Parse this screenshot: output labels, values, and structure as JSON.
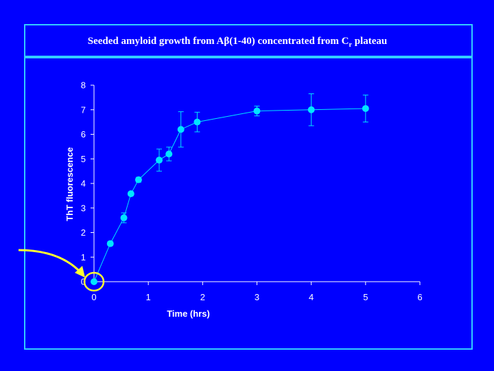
{
  "slide": {
    "title_main": "Seeded amyloid growth from Aβ(1-40) concentrated from C",
    "title_sub": "r",
    "title_tail": " plateau"
  },
  "colors": {
    "background": "#0000FF",
    "frame": "#33CCFF",
    "data": "#00E5FF",
    "axis": "#FFFFFF",
    "arrow": "#FFFF33"
  },
  "chart_data": {
    "type": "line",
    "title": "",
    "xlabel": "Time (hrs)",
    "ylabel": "ThT fluorescence",
    "xlim": [
      0,
      6
    ],
    "ylim": [
      0,
      8
    ],
    "xticks": [
      "0",
      "1",
      "2",
      "3",
      "4",
      "5",
      "6"
    ],
    "yticks": [
      "0",
      "1",
      "2",
      "3",
      "4",
      "5",
      "6",
      "7",
      "8"
    ],
    "grid": false,
    "series": [
      {
        "points": [
          {
            "x": 0,
            "y": 0,
            "err": 0
          },
          {
            "x": 0.3,
            "y": 1.55,
            "err": 0.08
          },
          {
            "x": 0.55,
            "y": 2.6,
            "err": 0.2
          },
          {
            "x": 0.68,
            "y": 3.58,
            "err": 0.08
          },
          {
            "x": 0.82,
            "y": 4.15,
            "err": 0.1
          },
          {
            "x": 1.2,
            "y": 4.95,
            "err": 0.45
          },
          {
            "x": 1.38,
            "y": 5.2,
            "err": 0.28
          },
          {
            "x": 1.6,
            "y": 6.2,
            "err": 0.72
          },
          {
            "x": 1.9,
            "y": 6.5,
            "err": 0.4
          },
          {
            "x": 3.0,
            "y": 6.95,
            "err": 0.2
          },
          {
            "x": 4.0,
            "y": 7.0,
            "err": 0.65
          },
          {
            "x": 5.0,
            "y": 7.05,
            "err": 0.55
          }
        ]
      }
    ],
    "annotations": [
      {
        "type": "circle",
        "target_x": 0,
        "target_y": 0
      },
      {
        "type": "arrow",
        "points_to": "origin"
      }
    ]
  }
}
